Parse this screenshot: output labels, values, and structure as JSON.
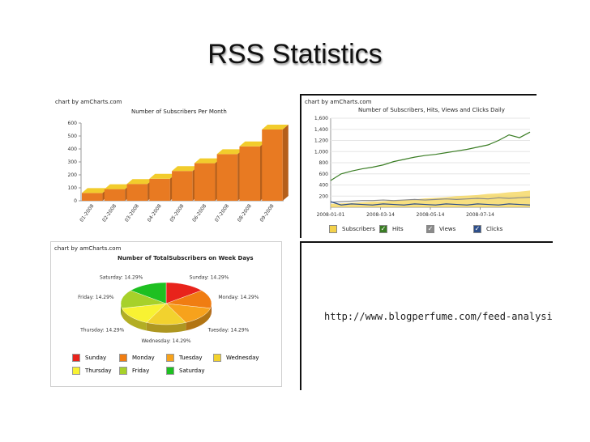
{
  "slide": {
    "title": "RSS Statistics"
  },
  "panels": {
    "monthly": {
      "credit": "chart by amCharts.com"
    },
    "daily": {
      "credit": "chart by amCharts.com"
    },
    "weekdays": {
      "credit": "chart by amCharts.com"
    },
    "link": {
      "url": "http://www.blogperfume.com/feed-analysis"
    }
  },
  "chart_data": [
    {
      "type": "bar",
      "title": "Number of Subscribers Per Month",
      "ylim": [
        0,
        600
      ],
      "yticks": [
        "0",
        "100",
        "200",
        "300",
        "400",
        "500",
        "600"
      ],
      "categories": [
        "01-2008",
        "02-2008",
        "03-2008",
        "04-2008",
        "05-2008",
        "06-2008",
        "07-2008",
        "08-2008",
        "09-2008"
      ],
      "values": [
        60,
        90,
        130,
        170,
        230,
        290,
        360,
        420,
        550
      ],
      "colors": {
        "bar": "#e87a22",
        "top": "#f2cc2c"
      }
    },
    {
      "type": "line",
      "title": "Number of Subscribers, Hits, Views and Clicks Daily",
      "ylim": [
        0,
        1600
      ],
      "yticks": [
        "200",
        "400",
        "600",
        "800",
        "1,000",
        "1,200",
        "1,400",
        "1,600"
      ],
      "xticks": [
        "2008-01-01",
        "2008-03-14",
        "2008-05-14",
        "2008-07-14"
      ],
      "series": [
        {
          "name": "Subscribers",
          "color": "#f3d14a",
          "checked": false,
          "values": [
            60,
            70,
            80,
            90,
            100,
            110,
            120,
            130,
            140,
            160,
            170,
            180,
            200,
            210,
            220,
            240,
            250,
            270,
            280,
            300
          ]
        },
        {
          "name": "Hits",
          "color": "#3a7d24",
          "checked": true,
          "values": [
            480,
            600,
            650,
            690,
            720,
            760,
            820,
            860,
            900,
            930,
            950,
            980,
            1010,
            1040,
            1080,
            1120,
            1200,
            1300,
            1250,
            1350
          ]
        },
        {
          "name": "Views",
          "color": "#8a8a8a",
          "checked": true,
          "values": [
            90,
            100,
            110,
            120,
            120,
            130,
            120,
            130,
            140,
            130,
            140,
            150,
            140,
            150,
            160,
            150,
            170,
            160,
            170,
            180
          ]
        },
        {
          "name": "Clicks",
          "color": "#2d4e8a",
          "checked": true,
          "values": [
            100,
            40,
            60,
            50,
            40,
            60,
            50,
            40,
            60,
            50,
            40,
            60,
            50,
            40,
            60,
            50,
            40,
            60,
            50,
            40
          ]
        }
      ]
    },
    {
      "type": "pie",
      "title": "Number of TotalSubscribers on Week Days",
      "slices": [
        {
          "label": "Sunday",
          "value": 14.29,
          "text": "Sunday: 14.29%",
          "color": "#e8231b"
        },
        {
          "label": "Monday",
          "value": 14.29,
          "text": "Monday: 14.29%",
          "color": "#f07d12"
        },
        {
          "label": "Tuesday",
          "value": 14.29,
          "text": "Tuesday: 14.29%",
          "color": "#f7a21c"
        },
        {
          "label": "Wednesday",
          "value": 14.29,
          "text": "Wednesday: 14.29%",
          "color": "#f2d22e"
        },
        {
          "label": "Thursday",
          "value": 14.29,
          "text": "Thursday: 14.29%",
          "color": "#f8f232"
        },
        {
          "label": "Friday",
          "value": 14.29,
          "text": "Friday: 14.29%",
          "color": "#a7d12a"
        },
        {
          "label": "Saturday",
          "value": 14.29,
          "text": "Saturday: 14.29%",
          "color": "#1ec021"
        }
      ]
    }
  ]
}
